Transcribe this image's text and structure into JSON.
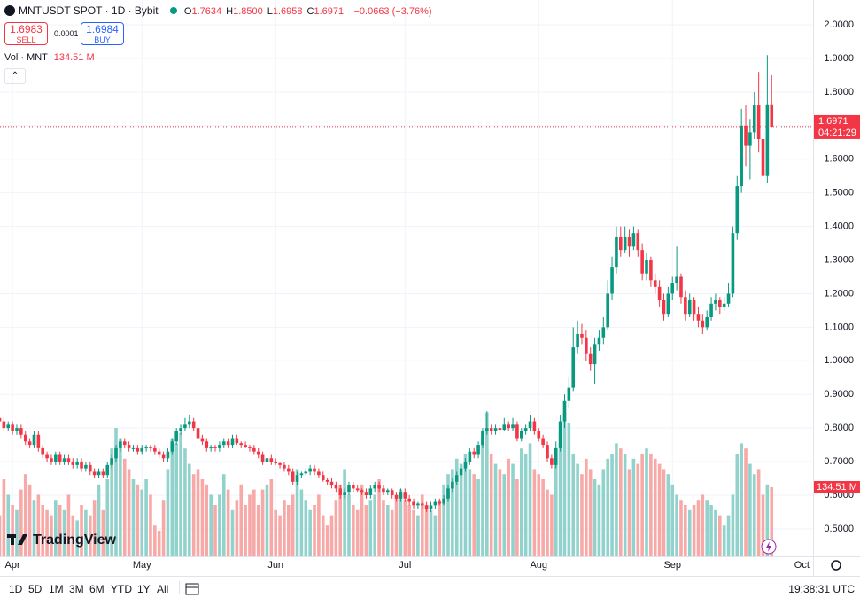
{
  "header": {
    "symbol": "MNTUSDT SPOT · 1D · Bybit",
    "ohlc": [
      {
        "key": "O",
        "value": "1.7634"
      },
      {
        "key": "H",
        "value": "1.8500"
      },
      {
        "key": "L",
        "value": "1.6958"
      },
      {
        "key": "C",
        "value": "1.6971"
      }
    ],
    "change": "−0.0663 (−3.76%)"
  },
  "trade": {
    "sell_price": "1.6983",
    "sell": "SELL",
    "spread": "0.0001",
    "buy_price": "1.6984",
    "buy": "BUY"
  },
  "volume_legend": "Vol · MNT",
  "logo": "TradingView",
  "toolbar": {
    "ranges": [
      "1D",
      "5D",
      "1M",
      "3M",
      "6M",
      "YTD",
      "1Y",
      "All"
    ],
    "clock": "19:38:31 UTC"
  },
  "chart_data": {
    "type": "candlestick",
    "up_color": "#089981",
    "down_color": "#f23645",
    "up_volume_color": "#92d2cc",
    "down_volume_color": "#f7a9a7",
    "grid": true,
    "xlim": [
      0.1,
      188.6
    ],
    "xticks": [
      {
        "value": 3,
        "label": "Apr"
      },
      {
        "value": 33,
        "label": "May"
      },
      {
        "value": 64,
        "label": "Jun"
      },
      {
        "value": 94,
        "label": "Jul"
      },
      {
        "value": 125,
        "label": "Aug"
      },
      {
        "value": 156,
        "label": "Sep"
      },
      {
        "value": 186,
        "label": "Oct"
      }
    ],
    "ylim": [
      0.418,
      2.074
    ],
    "yticks": [
      {
        "value": 0.5,
        "label": "0.5000"
      },
      {
        "value": 0.6,
        "label": "0.6000"
      },
      {
        "value": 0.7,
        "label": "0.7000"
      },
      {
        "value": 0.8,
        "label": "0.8000"
      },
      {
        "value": 0.9,
        "label": "0.9000"
      },
      {
        "value": 1,
        "label": "1.0000"
      },
      {
        "value": 1.1,
        "label": "1.1000"
      },
      {
        "value": 1.2,
        "label": "1.2000"
      },
      {
        "value": 1.3,
        "label": "1.3000"
      },
      {
        "value": 1.4,
        "label": "1.4000"
      },
      {
        "value": 1.5,
        "label": "1.5000"
      },
      {
        "value": 1.6,
        "label": "1.6000"
      },
      {
        "value": 1.7,
        "label": "1.7000"
      },
      {
        "value": 1.8,
        "label": "1.8000"
      },
      {
        "value": 1.9,
        "label": "1.9000"
      },
      {
        "value": 2,
        "label": "2.0000"
      }
    ],
    "last_price": 1.6971,
    "countdown": "04:21:29",
    "ohlc": [
      [
        0.83,
        0.84,
        0.81,
        0.82
      ],
      [
        0.82,
        0.83,
        0.79,
        0.8
      ],
      [
        0.8,
        0.82,
        0.79,
        0.81
      ],
      [
        0.81,
        0.82,
        0.78,
        0.79
      ],
      [
        0.79,
        0.81,
        0.78,
        0.8
      ],
      [
        0.8,
        0.81,
        0.77,
        0.78
      ],
      [
        0.78,
        0.79,
        0.75,
        0.76
      ],
      [
        0.76,
        0.77,
        0.74,
        0.75
      ],
      [
        0.75,
        0.79,
        0.74,
        0.78
      ],
      [
        0.78,
        0.79,
        0.73,
        0.74
      ],
      [
        0.74,
        0.75,
        0.71,
        0.72
      ],
      [
        0.72,
        0.73,
        0.7,
        0.71
      ],
      [
        0.71,
        0.72,
        0.69,
        0.7
      ],
      [
        0.7,
        0.73,
        0.69,
        0.72
      ],
      [
        0.72,
        0.73,
        0.69,
        0.7
      ],
      [
        0.7,
        0.72,
        0.69,
        0.71
      ],
      [
        0.71,
        0.72,
        0.69,
        0.7
      ],
      [
        0.7,
        0.71,
        0.68,
        0.69
      ],
      [
        0.69,
        0.71,
        0.68,
        0.7
      ],
      [
        0.7,
        0.71,
        0.67,
        0.68
      ],
      [
        0.68,
        0.7,
        0.67,
        0.69
      ],
      [
        0.69,
        0.7,
        0.66,
        0.67
      ],
      [
        0.67,
        0.68,
        0.65,
        0.66
      ],
      [
        0.66,
        0.68,
        0.65,
        0.67
      ],
      [
        0.67,
        0.68,
        0.65,
        0.66
      ],
      [
        0.66,
        0.7,
        0.65,
        0.69
      ],
      [
        0.69,
        0.72,
        0.68,
        0.71
      ],
      [
        0.71,
        0.75,
        0.7,
        0.74
      ],
      [
        0.74,
        0.77,
        0.73,
        0.76
      ],
      [
        0.76,
        0.77,
        0.74,
        0.75
      ],
      [
        0.75,
        0.76,
        0.73,
        0.74
      ],
      [
        0.74,
        0.75,
        0.73,
        0.74
      ],
      [
        0.74,
        0.75,
        0.72,
        0.73
      ],
      [
        0.73,
        0.75,
        0.72,
        0.74
      ],
      [
        0.74,
        0.75,
        0.73,
        0.745
      ],
      [
        0.745,
        0.75,
        0.73,
        0.74
      ],
      [
        0.74,
        0.75,
        0.72,
        0.73
      ],
      [
        0.73,
        0.74,
        0.71,
        0.72
      ],
      [
        0.72,
        0.73,
        0.7,
        0.71
      ],
      [
        0.71,
        0.74,
        0.7,
        0.73
      ],
      [
        0.73,
        0.77,
        0.72,
        0.76
      ],
      [
        0.76,
        0.8,
        0.75,
        0.79
      ],
      [
        0.79,
        0.81,
        0.78,
        0.8
      ],
      [
        0.8,
        0.83,
        0.79,
        0.81
      ],
      [
        0.81,
        0.84,
        0.8,
        0.82
      ],
      [
        0.82,
        0.83,
        0.79,
        0.8
      ],
      [
        0.8,
        0.81,
        0.76,
        0.77
      ],
      [
        0.77,
        0.78,
        0.75,
        0.76
      ],
      [
        0.76,
        0.77,
        0.73,
        0.74
      ],
      [
        0.74,
        0.75,
        0.73,
        0.745
      ],
      [
        0.745,
        0.75,
        0.73,
        0.74
      ],
      [
        0.74,
        0.76,
        0.73,
        0.75
      ],
      [
        0.75,
        0.77,
        0.74,
        0.76
      ],
      [
        0.76,
        0.77,
        0.74,
        0.75
      ],
      [
        0.75,
        0.78,
        0.74,
        0.77
      ],
      [
        0.77,
        0.78,
        0.75,
        0.755
      ],
      [
        0.755,
        0.76,
        0.74,
        0.75
      ],
      [
        0.75,
        0.76,
        0.74,
        0.745
      ],
      [
        0.745,
        0.75,
        0.73,
        0.74
      ],
      [
        0.74,
        0.75,
        0.72,
        0.73
      ],
      [
        0.73,
        0.74,
        0.71,
        0.72
      ],
      [
        0.72,
        0.73,
        0.69,
        0.7
      ],
      [
        0.7,
        0.72,
        0.69,
        0.71
      ],
      [
        0.71,
        0.72,
        0.69,
        0.7
      ],
      [
        0.7,
        0.71,
        0.69,
        0.695
      ],
      [
        0.695,
        0.7,
        0.68,
        0.69
      ],
      [
        0.69,
        0.7,
        0.67,
        0.68
      ],
      [
        0.68,
        0.69,
        0.66,
        0.67
      ],
      [
        0.67,
        0.68,
        0.63,
        0.64
      ],
      [
        0.64,
        0.67,
        0.63,
        0.66
      ],
      [
        0.66,
        0.67,
        0.65,
        0.665
      ],
      [
        0.665,
        0.68,
        0.66,
        0.67
      ],
      [
        0.67,
        0.69,
        0.66,
        0.68
      ],
      [
        0.68,
        0.69,
        0.66,
        0.67
      ],
      [
        0.67,
        0.68,
        0.65,
        0.66
      ],
      [
        0.66,
        0.67,
        0.64,
        0.645
      ],
      [
        0.645,
        0.65,
        0.63,
        0.64
      ],
      [
        0.64,
        0.65,
        0.62,
        0.63
      ],
      [
        0.63,
        0.64,
        0.61,
        0.62
      ],
      [
        0.62,
        0.63,
        0.59,
        0.6
      ],
      [
        0.6,
        0.62,
        0.59,
        0.61
      ],
      [
        0.61,
        0.64,
        0.6,
        0.63
      ],
      [
        0.63,
        0.64,
        0.61,
        0.62
      ],
      [
        0.62,
        0.63,
        0.61,
        0.615
      ],
      [
        0.615,
        0.62,
        0.6,
        0.61
      ],
      [
        0.61,
        0.62,
        0.59,
        0.6
      ],
      [
        0.6,
        0.63,
        0.59,
        0.62
      ],
      [
        0.62,
        0.64,
        0.61,
        0.63
      ],
      [
        0.63,
        0.64,
        0.61,
        0.62
      ],
      [
        0.62,
        0.63,
        0.6,
        0.61
      ],
      [
        0.61,
        0.62,
        0.6,
        0.615
      ],
      [
        0.615,
        0.62,
        0.59,
        0.6
      ],
      [
        0.6,
        0.61,
        0.58,
        0.59
      ],
      [
        0.59,
        0.62,
        0.58,
        0.61
      ],
      [
        0.61,
        0.62,
        0.58,
        0.59
      ],
      [
        0.59,
        0.6,
        0.57,
        0.58
      ],
      [
        0.58,
        0.59,
        0.56,
        0.57
      ],
      [
        0.57,
        0.58,
        0.56,
        0.575
      ],
      [
        0.575,
        0.58,
        0.56,
        0.57
      ],
      [
        0.57,
        0.58,
        0.55,
        0.56
      ],
      [
        0.56,
        0.58,
        0.55,
        0.57
      ],
      [
        0.57,
        0.59,
        0.56,
        0.58
      ],
      [
        0.58,
        0.59,
        0.57,
        0.575
      ],
      [
        0.575,
        0.6,
        0.57,
        0.59
      ],
      [
        0.59,
        0.63,
        0.58,
        0.62
      ],
      [
        0.62,
        0.65,
        0.61,
        0.64
      ],
      [
        0.64,
        0.67,
        0.63,
        0.66
      ],
      [
        0.66,
        0.69,
        0.65,
        0.68
      ],
      [
        0.68,
        0.71,
        0.67,
        0.7
      ],
      [
        0.7,
        0.74,
        0.69,
        0.73
      ],
      [
        0.73,
        0.74,
        0.71,
        0.72
      ],
      [
        0.72,
        0.76,
        0.71,
        0.75
      ],
      [
        0.75,
        0.8,
        0.74,
        0.79
      ],
      [
        0.79,
        0.85,
        0.78,
        0.8
      ],
      [
        0.8,
        0.81,
        0.78,
        0.79
      ],
      [
        0.79,
        0.81,
        0.78,
        0.8
      ],
      [
        0.8,
        0.81,
        0.78,
        0.795
      ],
      [
        0.795,
        0.83,
        0.79,
        0.81
      ],
      [
        0.81,
        0.82,
        0.79,
        0.8
      ],
      [
        0.8,
        0.83,
        0.79,
        0.81
      ],
      [
        0.81,
        0.82,
        0.76,
        0.77
      ],
      [
        0.77,
        0.8,
        0.76,
        0.79
      ],
      [
        0.79,
        0.81,
        0.78,
        0.8
      ],
      [
        0.8,
        0.84,
        0.79,
        0.82
      ],
      [
        0.82,
        0.83,
        0.78,
        0.79
      ],
      [
        0.79,
        0.8,
        0.76,
        0.77
      ],
      [
        0.77,
        0.78,
        0.74,
        0.75
      ],
      [
        0.75,
        0.76,
        0.7,
        0.71
      ],
      [
        0.71,
        0.72,
        0.68,
        0.69
      ],
      [
        0.69,
        0.76,
        0.68,
        0.74
      ],
      [
        0.74,
        0.84,
        0.73,
        0.82
      ],
      [
        0.82,
        0.9,
        0.8,
        0.88
      ],
      [
        0.88,
        0.95,
        0.86,
        0.92
      ],
      [
        0.92,
        1.1,
        0.91,
        1.04
      ],
      [
        1.04,
        1.12,
        1.02,
        1.08
      ],
      [
        1.08,
        1.11,
        1.05,
        1.07
      ],
      [
        1.07,
        1.09,
        1.0,
        1.02
      ],
      [
        1.02,
        1.04,
        0.97,
        0.99
      ],
      [
        0.99,
        1.07,
        0.93,
        1.05
      ],
      [
        1.05,
        1.09,
        1.03,
        1.07
      ],
      [
        1.07,
        1.13,
        1.05,
        1.1
      ],
      [
        1.1,
        1.24,
        1.09,
        1.2
      ],
      [
        1.2,
        1.31,
        1.18,
        1.28
      ],
      [
        1.28,
        1.4,
        1.26,
        1.37
      ],
      [
        1.37,
        1.4,
        1.31,
        1.33
      ],
      [
        1.33,
        1.4,
        1.32,
        1.37
      ],
      [
        1.37,
        1.39,
        1.31,
        1.34
      ],
      [
        1.34,
        1.4,
        1.33,
        1.38
      ],
      [
        1.38,
        1.39,
        1.31,
        1.33
      ],
      [
        1.33,
        1.35,
        1.24,
        1.26
      ],
      [
        1.26,
        1.32,
        1.24,
        1.3
      ],
      [
        1.3,
        1.31,
        1.22,
        1.24
      ],
      [
        1.24,
        1.26,
        1.2,
        1.22
      ],
      [
        1.22,
        1.24,
        1.16,
        1.18
      ],
      [
        1.18,
        1.2,
        1.12,
        1.14
      ],
      [
        1.14,
        1.22,
        1.13,
        1.2
      ],
      [
        1.2,
        1.25,
        1.18,
        1.23
      ],
      [
        1.23,
        1.34,
        1.21,
        1.25
      ],
      [
        1.25,
        1.26,
        1.17,
        1.19
      ],
      [
        1.19,
        1.21,
        1.12,
        1.14
      ],
      [
        1.14,
        1.2,
        1.13,
        1.18
      ],
      [
        1.18,
        1.19,
        1.12,
        1.14
      ],
      [
        1.14,
        1.16,
        1.1,
        1.12
      ],
      [
        1.12,
        1.14,
        1.08,
        1.1
      ],
      [
        1.1,
        1.15,
        1.09,
        1.13
      ],
      [
        1.13,
        1.19,
        1.12,
        1.17
      ],
      [
        1.17,
        1.2,
        1.15,
        1.18
      ],
      [
        1.18,
        1.19,
        1.14,
        1.16
      ],
      [
        1.16,
        1.19,
        1.15,
        1.17
      ],
      [
        1.17,
        1.23,
        1.16,
        1.2
      ],
      [
        1.2,
        1.4,
        1.19,
        1.38
      ],
      [
        1.38,
        1.55,
        1.36,
        1.52
      ],
      [
        1.52,
        1.75,
        1.5,
        1.7
      ],
      [
        1.7,
        1.76,
        1.58,
        1.64
      ],
      [
        1.64,
        1.72,
        1.54,
        1.68
      ],
      [
        1.68,
        1.8,
        1.66,
        1.76
      ],
      [
        1.76,
        1.86,
        1.62,
        1.66
      ],
      [
        1.66,
        1.7,
        1.45,
        1.55
      ],
      [
        1.55,
        1.91,
        1.53,
        1.7634
      ],
      [
        1.7634,
        1.85,
        1.6958,
        1.6971
      ]
    ],
    "volume": {
      "last_label": "134.51 M",
      "values": [
        80,
        150,
        120,
        100,
        90,
        130,
        160,
        140,
        110,
        120,
        100,
        90,
        80,
        110,
        100,
        90,
        120,
        80,
        70,
        100,
        90,
        80,
        110,
        140,
        90,
        150,
        210,
        250,
        230,
        190,
        170,
        150,
        140,
        130,
        150,
        120,
        60,
        50,
        110,
        170,
        230,
        220,
        240,
        210,
        180,
        160,
        170,
        150,
        140,
        120,
        100,
        120,
        160,
        130,
        90,
        110,
        140,
        100,
        120,
        130,
        100,
        130,
        140,
        150,
        90,
        80,
        110,
        100,
        120,
        170,
        130,
        110,
        90,
        100,
        120,
        80,
        60,
        80,
        110,
        140,
        170,
        120,
        100,
        90,
        140,
        100,
        110,
        120,
        150,
        110,
        100,
        90,
        120,
        130,
        110,
        100,
        90,
        80,
        120,
        100,
        90,
        80,
        110,
        140,
        160,
        170,
        190,
        180,
        200,
        170,
        160,
        150,
        230,
        280,
        200,
        180,
        170,
        160,
        190,
        180,
        150,
        210,
        200,
        220,
        170,
        160,
        150,
        130,
        120,
        200,
        240,
        280,
        260,
        200,
        180,
        160,
        190,
        170,
        150,
        140,
        170,
        190,
        200,
        220,
        210,
        200,
        170,
        190,
        180,
        200,
        210,
        200,
        190,
        180,
        170,
        160,
        140,
        120,
        110,
        100,
        90,
        100,
        110,
        120,
        110,
        100,
        90,
        80,
        60,
        80,
        120,
        200,
        220,
        210,
        180,
        160,
        170,
        120,
        140,
        134.51
      ]
    }
  }
}
